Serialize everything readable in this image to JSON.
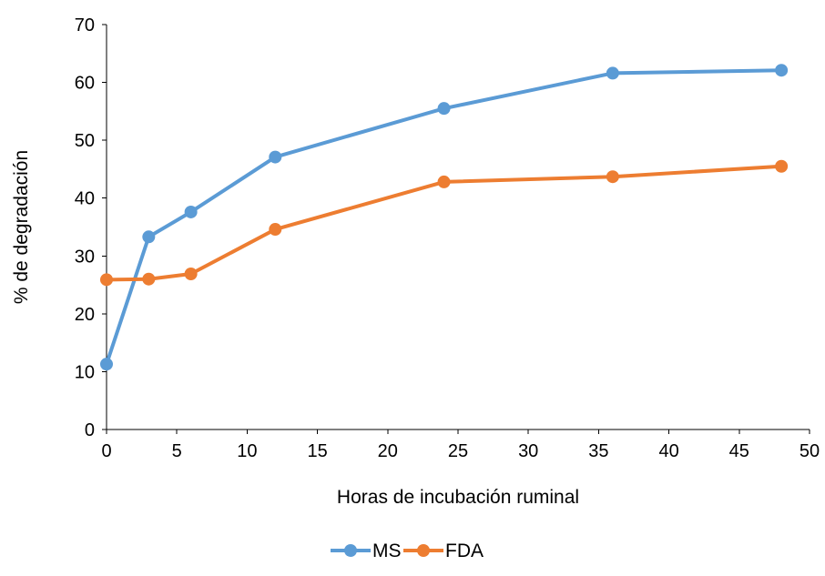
{
  "chart_data": {
    "type": "line",
    "title": "",
    "xlabel": "Horas de incubación ruminal",
    "ylabel": "% de degradación",
    "xlim": [
      0,
      50
    ],
    "ylim": [
      0,
      70
    ],
    "xticks": [
      "0",
      "5",
      "10",
      "15",
      "20",
      "25",
      "30",
      "35",
      "40",
      "45",
      "50"
    ],
    "yticks": [
      "0",
      "10",
      "20",
      "30",
      "40",
      "50",
      "60",
      "70"
    ],
    "x": [
      0,
      3,
      6,
      12,
      24,
      36,
      48
    ],
    "series": [
      {
        "name": "MS",
        "color": "#5B9BD5",
        "values": [
          11.3,
          33.3,
          37.6,
          47.1,
          55.5,
          61.6,
          62.1
        ]
      },
      {
        "name": "FDA",
        "color": "#ED7D31",
        "values": [
          25.9,
          26.0,
          26.9,
          34.6,
          42.8,
          43.7,
          45.5
        ]
      }
    ],
    "grid": false,
    "legend_position": "bottom"
  }
}
